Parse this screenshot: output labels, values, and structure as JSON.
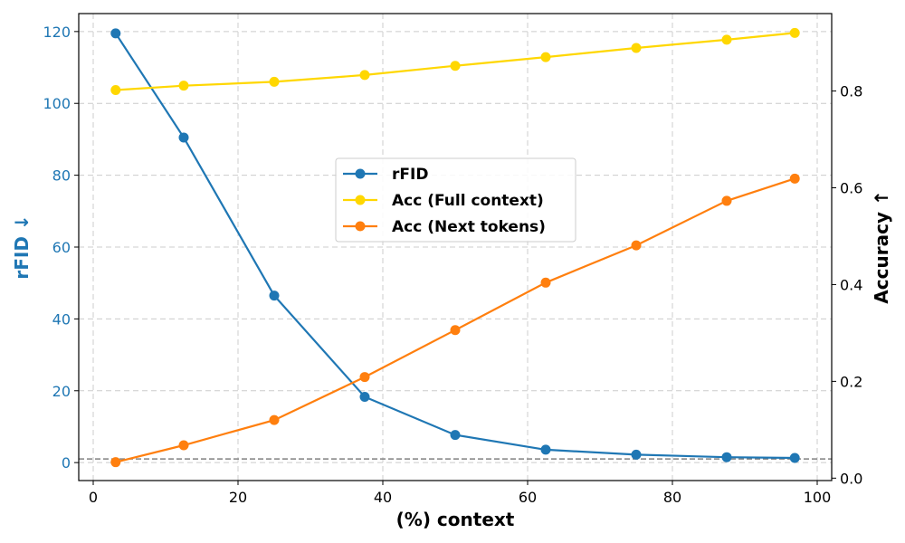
{
  "chart_data": {
    "type": "line",
    "xlabel": "(%) context",
    "ylabel_left": "rFID ↓",
    "ylabel_right": "Accuracy ↑",
    "xlim": [
      -2,
      102
    ],
    "ylim_left": [
      -5,
      125
    ],
    "ylim_right": [
      -0.005,
      0.96
    ],
    "x_ticks": [
      0,
      20,
      40,
      60,
      80,
      100
    ],
    "y_left_ticks": [
      0,
      20,
      40,
      60,
      80,
      100,
      120
    ],
    "y_right_ticks": [
      0.0,
      0.2,
      0.4,
      0.6,
      0.8
    ],
    "grid": true,
    "legend_position": "center",
    "x": [
      3.1,
      12.5,
      25,
      37.5,
      50,
      62.5,
      75,
      87.5,
      96.9
    ],
    "reference_line": {
      "axis": "left",
      "y": 1,
      "style": "dashed",
      "color": "#808080"
    },
    "series": [
      {
        "name": "rFID",
        "axis": "left",
        "color": "#1f77b4",
        "values": [
          119.5,
          90.5,
          46.5,
          18.3,
          7.7,
          3.6,
          2.2,
          1.5,
          1.3
        ]
      },
      {
        "name": "Acc (Full context)",
        "axis": "right",
        "color": "#ffd700",
        "values": [
          0.802,
          0.811,
          0.819,
          0.833,
          0.852,
          0.87,
          0.889,
          0.906,
          0.92
        ]
      },
      {
        "name": "Acc (Next tokens)",
        "axis": "right",
        "color": "#ff7f0e",
        "values": [
          0.033,
          0.068,
          0.12,
          0.209,
          0.306,
          0.404,
          0.481,
          0.573,
          0.619
        ]
      }
    ],
    "colors": {
      "left_axis": "#1f77b4",
      "right_axis": "#000000",
      "grid": "#cccccc"
    }
  }
}
